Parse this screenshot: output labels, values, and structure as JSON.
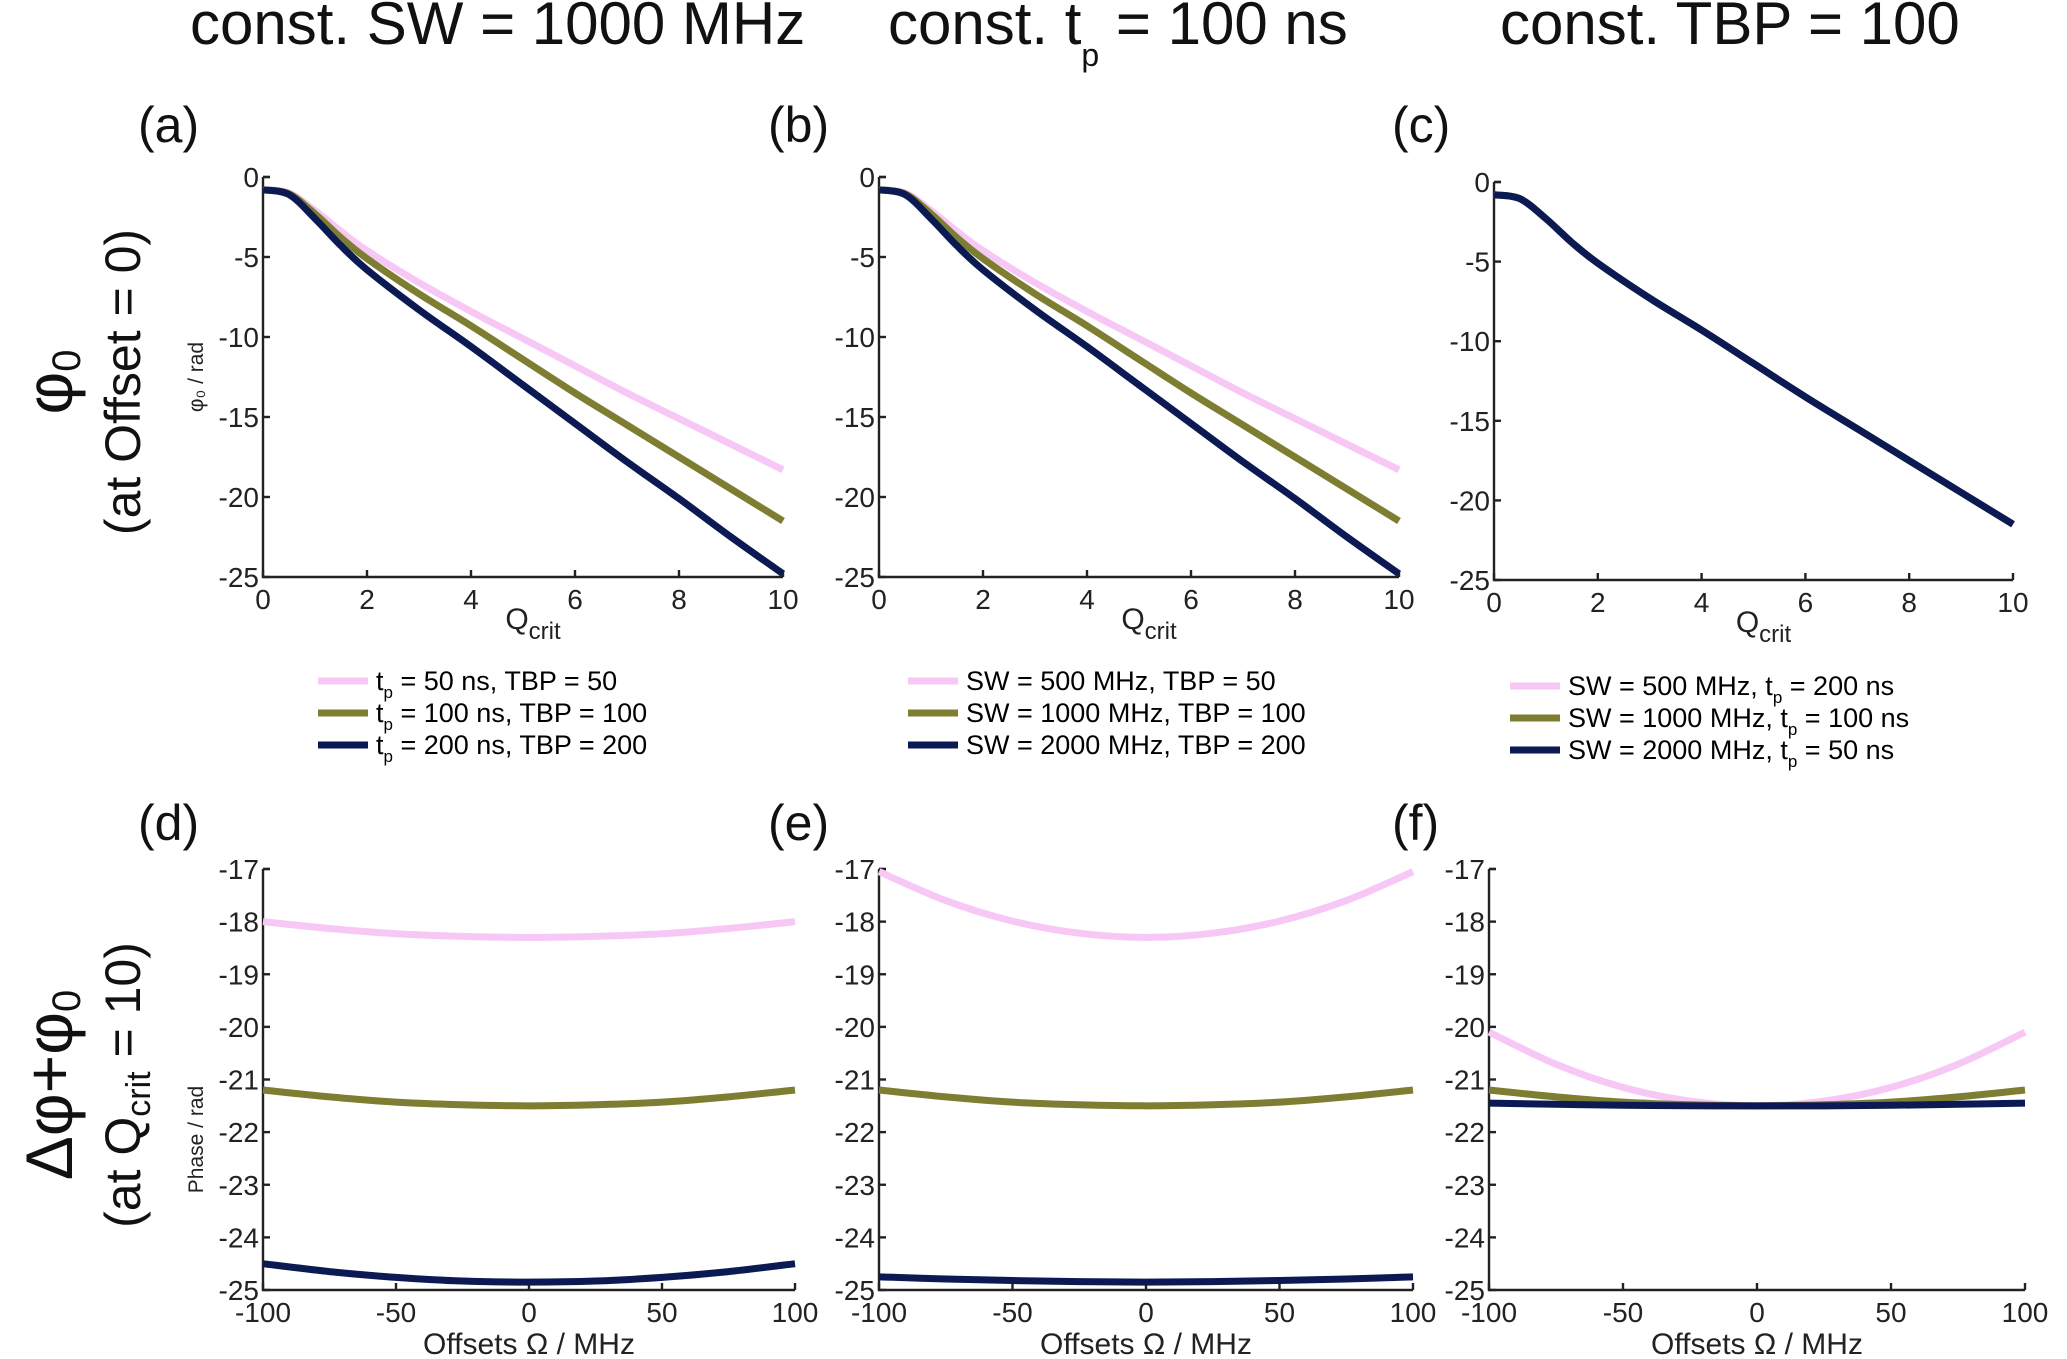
{
  "colors": {
    "pink": "#f7c8f5",
    "olive": "#7e7e33",
    "navy": "#0b1a52"
  },
  "column_titles": [
    {
      "pre": "const. SW = 1000 MHz",
      "sub": "",
      "post": ""
    },
    {
      "pre": "const. t",
      "sub": "p",
      "post": " = 100 ns"
    },
    {
      "pre": "const. TBP = 100",
      "sub": "",
      "post": ""
    }
  ],
  "row_labels": [
    {
      "main": "φ",
      "main_sub": "0",
      "second": "(at Offset = 0)",
      "second_sub": "",
      "second_post": ""
    },
    {
      "main": "Δφ+φ",
      "main_sub": "0",
      "second": "(at Q",
      "second_sub": "crit",
      "second_post": " = 10)"
    }
  ],
  "chart_data": [
    {
      "id": "a",
      "panel_label": "(a)",
      "type": "line",
      "ylabel": "φ₀ / rad",
      "xlabel": "Q",
      "xlabel_sub": "crit",
      "xlim": [
        0,
        10
      ],
      "ylim": [
        -25,
        0
      ],
      "xticks": [
        0,
        2,
        4,
        6,
        8,
        10
      ],
      "yticks": [
        0,
        -5,
        -10,
        -15,
        -20,
        -25
      ],
      "x": [
        0,
        0.5,
        1,
        1.5,
        2,
        3,
        4,
        5,
        6,
        7,
        8,
        9,
        10
      ],
      "series": [
        {
          "name": "t_p = 50 ns,   TBP = 50",
          "legend_pre": "t",
          "legend_sub": "p",
          "legend_post": " = 50 ns,   TBP = 50",
          "color": "pink",
          "values": [
            -0.8,
            -1.0,
            -2.1,
            -3.4,
            -4.6,
            -6.6,
            -8.4,
            -10.1,
            -11.8,
            -13.5,
            -15.1,
            -16.7,
            -18.3
          ]
        },
        {
          "name": "t_p = 100 ns, TBP = 100",
          "legend_pre": "t",
          "legend_sub": "p",
          "legend_post": " = 100 ns, TBP = 100",
          "color": "olive",
          "values": [
            -0.8,
            -1.05,
            -2.3,
            -3.8,
            -5.1,
            -7.3,
            -9.3,
            -11.4,
            -13.5,
            -15.5,
            -17.5,
            -19.5,
            -21.5
          ]
        },
        {
          "name": "t_p = 200 ns, TBP = 200",
          "legend_pre": "t",
          "legend_sub": "p",
          "legend_post": " = 200 ns, TBP = 200",
          "color": "navy",
          "values": [
            -0.8,
            -1.1,
            -2.6,
            -4.3,
            -5.8,
            -8.3,
            -10.6,
            -13.0,
            -15.4,
            -17.8,
            -20.1,
            -22.5,
            -24.8
          ]
        }
      ]
    },
    {
      "id": "b",
      "panel_label": "(b)",
      "type": "line",
      "ylabel": "",
      "xlabel": "Q",
      "xlabel_sub": "crit",
      "xlim": [
        0,
        10
      ],
      "ylim": [
        -25,
        0
      ],
      "xticks": [
        0,
        2,
        4,
        6,
        8,
        10
      ],
      "yticks": [
        0,
        -5,
        -10,
        -15,
        -20,
        -25
      ],
      "x": [
        0,
        0.5,
        1,
        1.5,
        2,
        3,
        4,
        5,
        6,
        7,
        8,
        9,
        10
      ],
      "series": [
        {
          "name": "SW = 500 MHz,   TBP = 50",
          "legend_pre": "SW = 500 MHz,   TBP = 50",
          "legend_sub": "",
          "legend_post": "",
          "color": "pink",
          "values": [
            -0.8,
            -1.0,
            -2.1,
            -3.4,
            -4.6,
            -6.6,
            -8.4,
            -10.1,
            -11.8,
            -13.5,
            -15.1,
            -16.7,
            -18.3
          ]
        },
        {
          "name": "SW = 1000 MHz, TBP = 100",
          "legend_pre": "SW = 1000 MHz, TBP = 100",
          "legend_sub": "",
          "legend_post": "",
          "color": "olive",
          "values": [
            -0.8,
            -1.05,
            -2.3,
            -3.8,
            -5.1,
            -7.3,
            -9.3,
            -11.4,
            -13.5,
            -15.5,
            -17.5,
            -19.5,
            -21.5
          ]
        },
        {
          "name": "SW = 2000 MHz, TBP = 200",
          "legend_pre": "SW = 2000 MHz, TBP = 200",
          "legend_sub": "",
          "legend_post": "",
          "color": "navy",
          "values": [
            -0.8,
            -1.1,
            -2.6,
            -4.3,
            -5.8,
            -8.3,
            -10.6,
            -13.0,
            -15.4,
            -17.8,
            -20.1,
            -22.5,
            -24.8
          ]
        }
      ]
    },
    {
      "id": "c",
      "panel_label": "(c)",
      "type": "line",
      "ylabel": "",
      "xlabel": "Q",
      "xlabel_sub": "crit",
      "xlim": [
        0,
        10
      ],
      "ylim": [
        -25,
        0
      ],
      "xticks": [
        0,
        2,
        4,
        6,
        8,
        10
      ],
      "yticks": [
        0,
        -5,
        -10,
        -15,
        -20,
        -25
      ],
      "x": [
        0,
        0.5,
        1,
        1.5,
        2,
        3,
        4,
        5,
        6,
        7,
        8,
        9,
        10
      ],
      "series": [
        {
          "name": "SW = 500 MHz,   t_p = 200 ns",
          "legend_pre": "SW = 500 MHz,   t",
          "legend_sub": "p",
          "legend_post": " = 200 ns",
          "color": "pink",
          "values": [
            -0.8,
            -1.05,
            -2.3,
            -3.8,
            -5.1,
            -7.3,
            -9.3,
            -11.4,
            -13.5,
            -15.5,
            -17.5,
            -19.5,
            -21.5
          ]
        },
        {
          "name": "SW = 1000 MHz, t_p = 100 ns",
          "legend_pre": "SW = 1000 MHz, t",
          "legend_sub": "p",
          "legend_post": " = 100 ns",
          "color": "olive",
          "values": [
            -0.8,
            -1.05,
            -2.3,
            -3.8,
            -5.1,
            -7.3,
            -9.3,
            -11.4,
            -13.5,
            -15.5,
            -17.5,
            -19.5,
            -21.5
          ]
        },
        {
          "name": "SW = 2000 MHz, t_p = 50 ns",
          "legend_pre": "SW = 2000 MHz, t",
          "legend_sub": "p",
          "legend_post": " = 50 ns",
          "color": "navy",
          "values": [
            -0.8,
            -1.05,
            -2.3,
            -3.8,
            -5.1,
            -7.3,
            -9.3,
            -11.4,
            -13.5,
            -15.5,
            -17.5,
            -19.5,
            -21.5
          ]
        }
      ]
    },
    {
      "id": "d",
      "panel_label": "(d)",
      "type": "line",
      "ylabel": "Phase / rad",
      "xlabel": "Offsets Ω / MHz",
      "xlabel_sub": "",
      "xlim": [
        -100,
        100
      ],
      "ylim": [
        -25,
        -17
      ],
      "xticks": [
        -100,
        -50,
        0,
        50,
        100
      ],
      "yticks": [
        -17,
        -18,
        -19,
        -20,
        -21,
        -22,
        -23,
        -24,
        -25
      ],
      "x": [
        -100,
        -75,
        -50,
        -25,
        0,
        25,
        50,
        75,
        100
      ],
      "series": [
        {
          "name": "pink",
          "color": "pink",
          "values": [
            -18.0,
            -18.13,
            -18.23,
            -18.28,
            -18.3,
            -18.28,
            -18.23,
            -18.13,
            -18.0
          ]
        },
        {
          "name": "olive",
          "color": "olive",
          "values": [
            -21.2,
            -21.33,
            -21.43,
            -21.48,
            -21.5,
            -21.48,
            -21.43,
            -21.33,
            -21.2
          ]
        },
        {
          "name": "navy",
          "color": "navy",
          "values": [
            -24.5,
            -24.65,
            -24.76,
            -24.83,
            -24.85,
            -24.83,
            -24.76,
            -24.65,
            -24.5
          ]
        }
      ]
    },
    {
      "id": "e",
      "panel_label": "(e)",
      "type": "line",
      "ylabel": "",
      "xlabel": "Offsets Ω / MHz",
      "xlabel_sub": "",
      "xlim": [
        -100,
        100
      ],
      "ylim": [
        -25,
        -17
      ],
      "xticks": [
        -100,
        -50,
        0,
        50,
        100
      ],
      "yticks": [
        -17,
        -18,
        -19,
        -20,
        -21,
        -22,
        -23,
        -24,
        -25
      ],
      "x": [
        -100,
        -75,
        -50,
        -25,
        0,
        25,
        50,
        75,
        100
      ],
      "series": [
        {
          "name": "pink",
          "color": "pink",
          "values": [
            -17.05,
            -17.6,
            -17.99,
            -18.22,
            -18.3,
            -18.22,
            -17.99,
            -17.6,
            -17.05
          ]
        },
        {
          "name": "olive",
          "color": "olive",
          "values": [
            -21.2,
            -21.33,
            -21.43,
            -21.48,
            -21.5,
            -21.48,
            -21.43,
            -21.33,
            -21.2
          ]
        },
        {
          "name": "navy",
          "color": "navy",
          "values": [
            -24.75,
            -24.79,
            -24.82,
            -24.84,
            -24.85,
            -24.84,
            -24.82,
            -24.79,
            -24.75
          ]
        }
      ]
    },
    {
      "id": "f",
      "panel_label": "(f)",
      "type": "line",
      "ylabel": "",
      "xlabel": "Offsets Ω / MHz",
      "xlabel_sub": "",
      "xlim": [
        -100,
        100
      ],
      "ylim": [
        -25,
        -17
      ],
      "xticks": [
        -100,
        -50,
        0,
        50,
        100
      ],
      "yticks": [
        -17,
        -18,
        -19,
        -20,
        -21,
        -22,
        -23,
        -24,
        -25
      ],
      "x": [
        -100,
        -75,
        -50,
        -25,
        0,
        25,
        50,
        75,
        100
      ],
      "series": [
        {
          "name": "pink",
          "color": "pink",
          "values": [
            -20.1,
            -20.71,
            -21.15,
            -21.41,
            -21.5,
            -21.41,
            -21.15,
            -20.71,
            -20.1
          ]
        },
        {
          "name": "olive",
          "color": "olive",
          "values": [
            -21.2,
            -21.33,
            -21.43,
            -21.48,
            -21.5,
            -21.48,
            -21.43,
            -21.33,
            -21.2
          ]
        },
        {
          "name": "navy",
          "color": "navy",
          "values": [
            -21.45,
            -21.47,
            -21.49,
            -21.5,
            -21.5,
            -21.5,
            -21.49,
            -21.47,
            -21.45
          ]
        }
      ]
    }
  ]
}
